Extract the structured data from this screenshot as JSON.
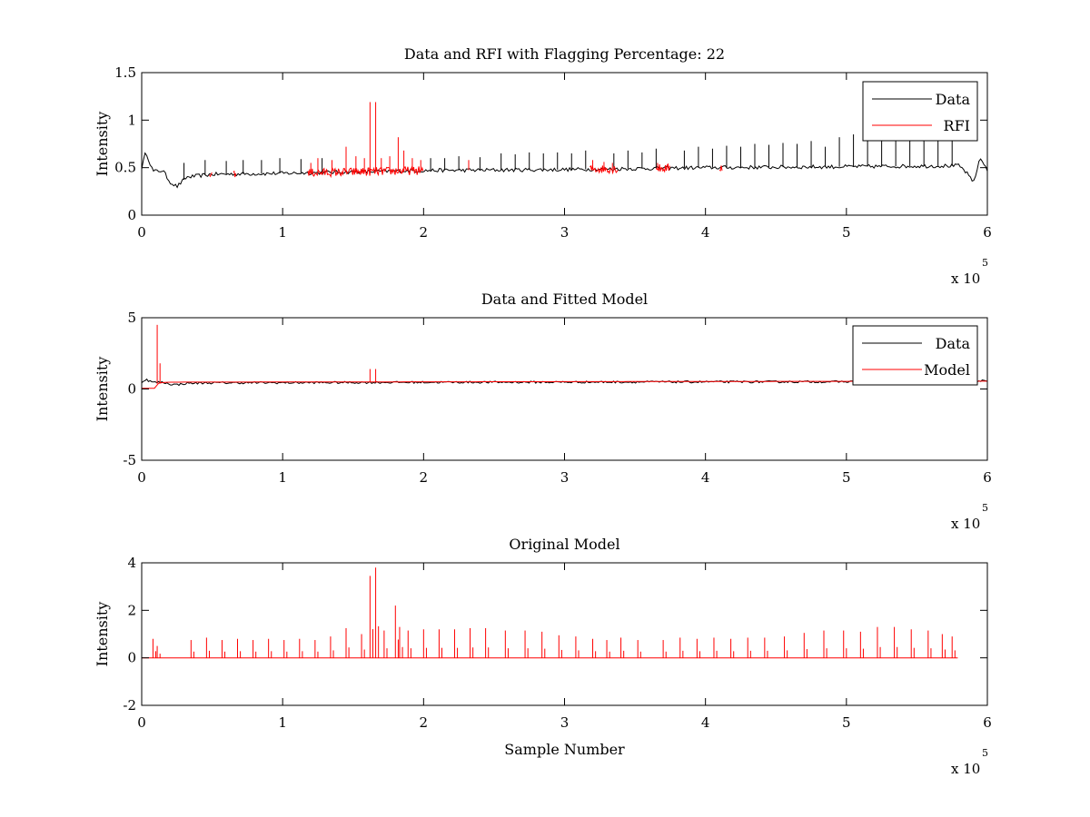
{
  "chart_data": [
    {
      "type": "line",
      "title": "Data and RFI with Flagging Percentage: 22",
      "xlabel": "",
      "ylabel": "Intensity",
      "xlim": [
        0,
        600000
      ],
      "ylim": [
        0,
        1.5
      ],
      "xticks": [
        0,
        1,
        2,
        3,
        4,
        5,
        6
      ],
      "yticks": [
        "0",
        "0.5",
        "1",
        "1.5"
      ],
      "x_exponent": "x 10",
      "x_exponent_power": "5",
      "grid": false,
      "legend_position": "top-right",
      "colors": {
        "Data": "#000000",
        "RFI": "#ff0000"
      },
      "series": [
        {
          "name": "Data",
          "baseline": [
            [
              0,
              0.5
            ],
            [
              3000,
              0.67
            ],
            [
              8000,
              0.46
            ],
            [
              15000,
              0.47
            ],
            [
              20000,
              0.35
            ],
            [
              25000,
              0.3
            ],
            [
              32000,
              0.4
            ],
            [
              50000,
              0.43
            ],
            [
              100000,
              0.44
            ],
            [
              200000,
              0.47
            ],
            [
              300000,
              0.48
            ],
            [
              400000,
              0.5
            ],
            [
              500000,
              0.51
            ],
            [
              580000,
              0.52
            ],
            [
              585000,
              0.45
            ],
            [
              590000,
              0.34
            ],
            [
              595000,
              0.6
            ],
            [
              600000,
              0.48
            ]
          ],
          "spikes_x": [
            30000,
            45000,
            60000,
            72000,
            85000,
            98000,
            113000,
            128000,
            205000,
            215000,
            225000,
            240000,
            255000,
            265000,
            275000,
            285000,
            295000,
            305000,
            315000,
            335000,
            345000,
            355000,
            365000,
            385000,
            395000,
            405000,
            415000,
            425000,
            435000,
            445000,
            455000,
            465000,
            475000,
            485000,
            495000,
            505000,
            515000,
            525000,
            535000,
            545000,
            555000,
            565000,
            575000
          ],
          "spikes_y": [
            0.55,
            0.58,
            0.57,
            0.58,
            0.58,
            0.6,
            0.59,
            0.6,
            0.6,
            0.6,
            0.62,
            0.61,
            0.65,
            0.64,
            0.66,
            0.65,
            0.66,
            0.65,
            0.68,
            0.65,
            0.68,
            0.66,
            0.7,
            0.68,
            0.72,
            0.7,
            0.73,
            0.72,
            0.75,
            0.74,
            0.76,
            0.75,
            0.78,
            0.72,
            0.82,
            0.85,
            0.8,
            0.84,
            0.82,
            0.83,
            0.8,
            0.78,
            0.78
          ]
        },
        {
          "name": "RFI",
          "segments_x": [
            [
              118000,
              200000
            ],
            [
              318000,
              338000
            ],
            [
              365000,
              375000
            ],
            [
              410000,
              412000
            ],
            [
              48000,
              50000
            ],
            [
              65000,
              67000
            ]
          ],
          "spikes_x": [
            120000,
            125000,
            135000,
            145000,
            152000,
            158000,
            162000,
            166000,
            170000,
            176000,
            182000,
            186000,
            192000,
            198000,
            232000,
            320000,
            328000,
            334000,
            366000
          ],
          "spikes_y": [
            0.55,
            0.6,
            0.58,
            0.72,
            0.62,
            0.6,
            1.19,
            1.19,
            0.6,
            0.62,
            0.82,
            0.68,
            0.6,
            0.58,
            0.58,
            0.58,
            0.56,
            0.55,
            0.55
          ]
        }
      ]
    },
    {
      "type": "line",
      "title": "Data and Fitted Model",
      "xlabel": "",
      "ylabel": "Intensity",
      "xlim": [
        0,
        600000
      ],
      "ylim": [
        -5,
        5
      ],
      "xticks": [
        0,
        1,
        2,
        3,
        4,
        5,
        6
      ],
      "yticks": [
        "-5",
        "0",
        "5"
      ],
      "x_exponent": "x 10",
      "x_exponent_power": "5",
      "grid": false,
      "legend_position": "top-right",
      "colors": {
        "Data": "#000000",
        "Model": "#ff0000"
      },
      "series": [
        {
          "name": "Data",
          "baseline": [
            [
              0,
              0.5
            ],
            [
              3000,
              0.67
            ],
            [
              8000,
              0.46
            ],
            [
              15000,
              0.47
            ],
            [
              20000,
              0.35
            ],
            [
              25000,
              0.3
            ],
            [
              32000,
              0.4
            ],
            [
              50000,
              0.43
            ],
            [
              100000,
              0.44
            ],
            [
              200000,
              0.47
            ],
            [
              300000,
              0.48
            ],
            [
              400000,
              0.5
            ],
            [
              500000,
              0.51
            ],
            [
              580000,
              0.52
            ],
            [
              585000,
              0.45
            ],
            [
              590000,
              0.34
            ],
            [
              595000,
              0.6
            ],
            [
              600000,
              0.48
            ]
          ]
        },
        {
          "name": "Model",
          "baseline": [
            [
              0,
              0.05
            ],
            [
              9000,
              0.05
            ],
            [
              10000,
              0.35
            ],
            [
              14000,
              0.45
            ],
            [
              20000,
              0.48
            ],
            [
              600000,
              0.55
            ]
          ],
          "spikes_x": [
            11000,
            13000,
            162000,
            166000
          ],
          "spikes_y": [
            4.5,
            1.8,
            1.4,
            1.4
          ]
        }
      ]
    },
    {
      "type": "line",
      "title": "Original Model",
      "xlabel": "Sample Number",
      "ylabel": "Intensity",
      "xlim": [
        0,
        600000
      ],
      "ylim": [
        -2,
        4
      ],
      "xticks": [
        0,
        1,
        2,
        3,
        4,
        5,
        6
      ],
      "yticks": [
        "-2",
        "0",
        "2",
        "4"
      ],
      "x_exponent": "x 10",
      "x_exponent_power": "5",
      "grid": false,
      "colors": {
        "Model": "#ff0000"
      },
      "series": [
        {
          "name": "Original Model",
          "baseline": [
            [
              0,
              0
            ],
            [
              580000,
              0
            ]
          ],
          "spikes_x": [
            8000,
            11000,
            35000,
            46000,
            57000,
            68000,
            79000,
            90000,
            101000,
            112000,
            123000,
            134000,
            145000,
            156000,
            162000,
            166000,
            172000,
            180000,
            183000,
            189000,
            200000,
            211000,
            222000,
            233000,
            244000,
            258000,
            272000,
            284000,
            296000,
            308000,
            320000,
            330000,
            340000,
            352000,
            370000,
            382000,
            394000,
            406000,
            418000,
            430000,
            442000,
            456000,
            470000,
            484000,
            498000,
            510000,
            522000,
            534000,
            546000,
            558000,
            568000,
            575000
          ],
          "spikes_y": [
            0.8,
            0.5,
            0.75,
            0.85,
            0.75,
            0.8,
            0.75,
            0.8,
            0.75,
            0.8,
            0.75,
            0.9,
            1.25,
            1.0,
            3.45,
            3.8,
            1.15,
            2.2,
            1.3,
            1.15,
            1.2,
            1.2,
            1.2,
            1.25,
            1.25,
            1.15,
            1.15,
            1.1,
            0.95,
            0.9,
            0.8,
            0.75,
            0.85,
            0.75,
            0.75,
            0.85,
            0.8,
            0.85,
            0.8,
            0.85,
            0.85,
            0.9,
            1.05,
            1.15,
            1.15,
            1.1,
            1.3,
            1.3,
            1.2,
            1.15,
            1.0,
            0.9
          ]
        }
      ]
    }
  ]
}
